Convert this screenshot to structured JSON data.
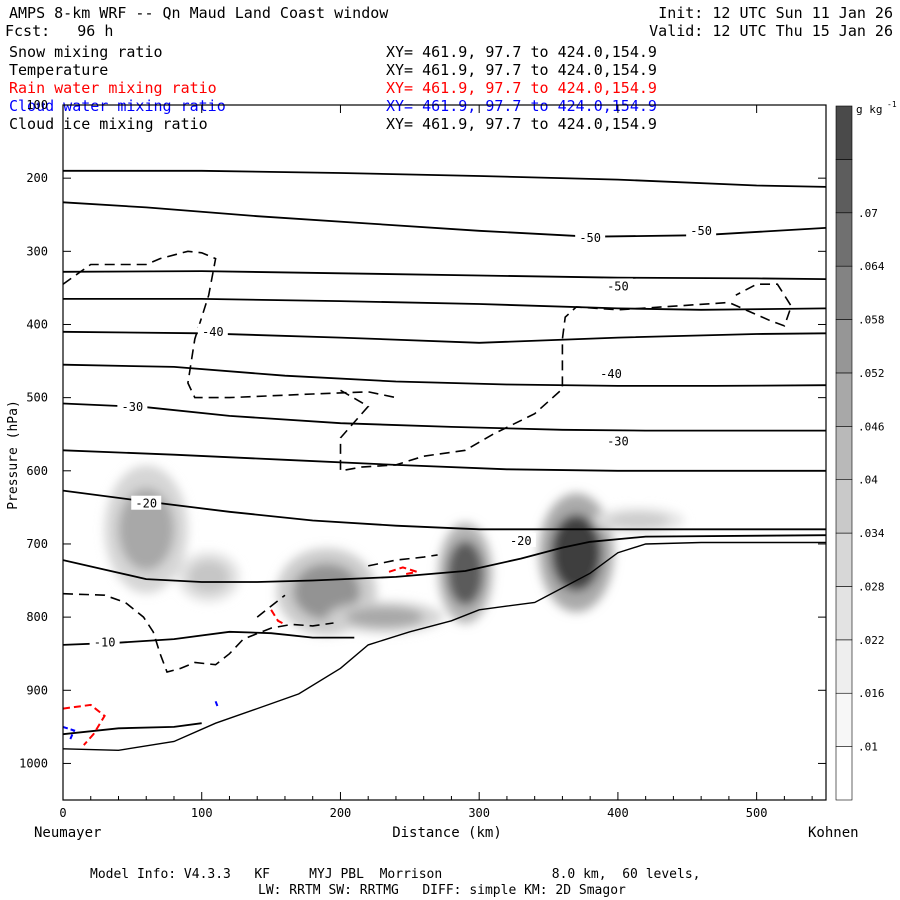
{
  "header": {
    "title": "AMPS 8-km WRF -- Qn Maud Land Coast window",
    "init": "Init: 12 UTC Sun 11 Jan 26",
    "fcst": "Fcst:   96 h",
    "valid": "Valid: 12 UTC Thu 15 Jan 26"
  },
  "legend": [
    {
      "label": "Snow mixing ratio",
      "xy": "XY= 461.9, 97.7 to 424.0,154.9",
      "color": "#000000"
    },
    {
      "label": "Temperature",
      "xy": "XY= 461.9, 97.7 to 424.0,154.9",
      "color": "#000000"
    },
    {
      "label": "Rain water mixing ratio",
      "xy": "XY= 461.9, 97.7 to 424.0,154.9",
      "color": "#ff0000"
    },
    {
      "label": "Cloud water mixing ratio",
      "xy": "XY= 461.9, 97.7 to 424.0,154.9",
      "color": "#0000ff"
    },
    {
      "label": "Cloud ice mixing ratio",
      "xy": "XY= 461.9, 97.7 to 424.0,154.9",
      "color": "#000000"
    }
  ],
  "footer": {
    "line1": "Model Info: V4.3.3   KF     MYJ PBL  Morrison              8.0 km,  60 levels,",
    "line2": "LW: RRTM SW: RRTMG   DIFF: simple KM: 2D Smagor"
  },
  "chart_data": {
    "type": "cross-section",
    "xlabel": "Distance (km)",
    "ylabel": "Pressure (hPa)",
    "x_ticks": [
      0,
      100,
      200,
      300,
      400,
      500
    ],
    "xlim": [
      0,
      550
    ],
    "y_ticks": [
      100,
      200,
      300,
      400,
      500,
      600,
      700,
      800,
      900,
      1000
    ],
    "ylim": [
      1050,
      100
    ],
    "left_endpoint": "Neumayer",
    "right_endpoint": "Kohnen",
    "colorbar": {
      "unit": "g kg",
      "unit_superscript": "-1",
      "ticks": [
        ".01",
        ".016",
        ".022",
        ".028",
        ".034",
        ".04",
        ".046",
        ".052",
        ".058",
        ".064",
        ".07"
      ],
      "shades": [
        "#ffffff",
        "#f7f7f7",
        "#eeeeee",
        "#e3e3e3",
        "#d7d7d7",
        "#c9c9c9",
        "#b9b9b9",
        "#a8a8a8",
        "#969696",
        "#838383",
        "#707070",
        "#5d5d5d",
        "#4a4a4a"
      ]
    },
    "temperature_contours": [
      {
        "level": -50,
        "points": [
          [
            0,
            190
          ],
          [
            100,
            190
          ],
          [
            200,
            193
          ],
          [
            300,
            197
          ],
          [
            400,
            202
          ],
          [
            500,
            210
          ],
          [
            550,
            212
          ]
        ]
      },
      {
        "level": -50,
        "points": [
          [
            0,
            233
          ],
          [
            60,
            240
          ],
          [
            140,
            252
          ],
          [
            220,
            262
          ],
          [
            300,
            272
          ],
          [
            380,
            280
          ],
          [
            460,
            278
          ],
          [
            550,
            268
          ]
        ]
      },
      {
        "level": -50,
        "points": [
          [
            0,
            328
          ],
          [
            100,
            327
          ],
          [
            200,
            330
          ],
          [
            300,
            333
          ],
          [
            400,
            336
          ],
          [
            500,
            337
          ],
          [
            550,
            338
          ]
        ]
      },
      {
        "level": -50,
        "points": [
          [
            0,
            365
          ],
          [
            100,
            365
          ],
          [
            200,
            368
          ],
          [
            300,
            372
          ],
          [
            400,
            378
          ],
          [
            460,
            380
          ],
          [
            550,
            378
          ]
        ]
      },
      {
        "level": -40,
        "points": [
          [
            0,
            410
          ],
          [
            100,
            412
          ],
          [
            200,
            418
          ],
          [
            300,
            425
          ],
          [
            400,
            418
          ],
          [
            500,
            413
          ],
          [
            550,
            412
          ]
        ]
      },
      {
        "level": -40,
        "points": [
          [
            0,
            455
          ],
          [
            80,
            458
          ],
          [
            160,
            470
          ],
          [
            240,
            478
          ],
          [
            320,
            482
          ],
          [
            400,
            484
          ],
          [
            470,
            484
          ],
          [
            550,
            483
          ]
        ]
      },
      {
        "level": -30,
        "points": [
          [
            0,
            508
          ],
          [
            60,
            513
          ],
          [
            120,
            525
          ],
          [
            200,
            535
          ],
          [
            280,
            540
          ],
          [
            360,
            544
          ],
          [
            420,
            545
          ],
          [
            550,
            545
          ]
        ]
      },
      {
        "level": -30,
        "points": [
          [
            0,
            572
          ],
          [
            80,
            578
          ],
          [
            160,
            585
          ],
          [
            240,
            592
          ],
          [
            320,
            598
          ],
          [
            400,
            600
          ],
          [
            470,
            600
          ],
          [
            550,
            600
          ]
        ]
      },
      {
        "level": -20,
        "points": [
          [
            0,
            627
          ],
          [
            60,
            642
          ],
          [
            120,
            656
          ],
          [
            180,
            668
          ],
          [
            240,
            675
          ],
          [
            300,
            680
          ],
          [
            360,
            680
          ],
          [
            420,
            680
          ],
          [
            550,
            680
          ]
        ]
      },
      {
        "level": -20,
        "points": [
          [
            0,
            722
          ],
          [
            30,
            735
          ],
          [
            60,
            748
          ],
          [
            100,
            752
          ],
          [
            140,
            752
          ],
          [
            180,
            750
          ],
          [
            240,
            745
          ],
          [
            290,
            737
          ],
          [
            330,
            720
          ],
          [
            360,
            705
          ],
          [
            380,
            697
          ],
          [
            420,
            690
          ],
          [
            550,
            688
          ]
        ]
      },
      {
        "level": -10,
        "points": [
          [
            0,
            838
          ],
          [
            40,
            835
          ],
          [
            80,
            830
          ],
          [
            120,
            820
          ],
          [
            150,
            822
          ],
          [
            180,
            828
          ],
          [
            210,
            828
          ]
        ]
      },
      {
        "level": -10,
        "points": [
          [
            0,
            960
          ],
          [
            40,
            952
          ],
          [
            80,
            950
          ],
          [
            100,
            945
          ]
        ]
      }
    ],
    "terrain": [
      [
        0,
        980
      ],
      [
        40,
        982
      ],
      [
        80,
        970
      ],
      [
        110,
        945
      ],
      [
        140,
        925
      ],
      [
        170,
        905
      ],
      [
        200,
        870
      ],
      [
        220,
        838
      ],
      [
        250,
        820
      ],
      [
        280,
        805
      ],
      [
        300,
        790
      ],
      [
        320,
        785
      ],
      [
        340,
        780
      ],
      [
        360,
        760
      ],
      [
        380,
        740
      ],
      [
        400,
        712
      ],
      [
        420,
        700
      ],
      [
        460,
        698
      ],
      [
        550,
        698
      ]
    ],
    "cloud_ice_blobs": [
      {
        "x": 60,
        "p": 680,
        "rx": 20,
        "ry": 140,
        "q": 0.03
      },
      {
        "x": 105,
        "p": 745,
        "rx": 15,
        "ry": 55,
        "q": 0.018
      },
      {
        "x": 190,
        "p": 765,
        "rx": 24,
        "ry": 95,
        "q": 0.038
      },
      {
        "x": 232,
        "p": 800,
        "rx": 28,
        "ry": 35,
        "q": 0.03
      },
      {
        "x": 290,
        "p": 740,
        "rx": 13,
        "ry": 110,
        "q": 0.06
      },
      {
        "x": 370,
        "p": 712,
        "rx": 18,
        "ry": 130,
        "q": 0.07
      },
      {
        "x": 415,
        "p": 668,
        "rx": 22,
        "ry": 28,
        "q": 0.016
      }
    ],
    "snow_contours": [
      {
        "points": [
          [
            0,
            345
          ],
          [
            20,
            318
          ],
          [
            60,
            318
          ],
          [
            70,
            310
          ],
          [
            90,
            300
          ],
          [
            100,
            302
          ],
          [
            110,
            310
          ],
          [
            105,
            360
          ],
          [
            95,
            420
          ],
          [
            90,
            480
          ],
          [
            95,
            500
          ],
          [
            120,
            500
          ],
          [
            180,
            495
          ],
          [
            220,
            492
          ],
          [
            240,
            500
          ]
        ]
      },
      {
        "points": [
          [
            200,
            490
          ],
          [
            220,
            512
          ],
          [
            200,
            555
          ],
          [
            200,
            600
          ],
          [
            215,
            595
          ],
          [
            240,
            592
          ],
          [
            260,
            580
          ],
          [
            290,
            572
          ],
          [
            310,
            550
          ],
          [
            340,
            522
          ],
          [
            360,
            488
          ],
          [
            360,
            420
          ],
          [
            362,
            390
          ],
          [
            370,
            376
          ],
          [
            400,
            380
          ],
          [
            440,
            375
          ],
          [
            480,
            370
          ],
          [
            510,
            395
          ],
          [
            520,
            402
          ],
          [
            525,
            375
          ],
          [
            515,
            345
          ],
          [
            500,
            345
          ],
          [
            485,
            360
          ]
        ]
      },
      {
        "points": [
          [
            0,
            768
          ],
          [
            30,
            770
          ],
          [
            45,
            780
          ],
          [
            58,
            800
          ],
          [
            65,
            820
          ],
          [
            70,
            850
          ],
          [
            75,
            875
          ],
          [
            85,
            870
          ],
          [
            95,
            862
          ],
          [
            110,
            865
          ],
          [
            120,
            850
          ],
          [
            130,
            830
          ],
          [
            150,
            815
          ],
          [
            165,
            810
          ],
          [
            180,
            812
          ],
          [
            195,
            808
          ]
        ]
      },
      {
        "points": [
          [
            140,
            800
          ],
          [
            150,
            785
          ],
          [
            160,
            770
          ]
        ]
      },
      {
        "points": [
          [
            220,
            730
          ],
          [
            240,
            722
          ],
          [
            260,
            718
          ],
          [
            270,
            715
          ]
        ]
      }
    ],
    "rain_contours": [
      {
        "points": [
          [
            0,
            925
          ],
          [
            20,
            920
          ],
          [
            30,
            935
          ],
          [
            22,
            960
          ],
          [
            15,
            975
          ]
        ]
      },
      {
        "points": [
          [
            150,
            790
          ],
          [
            155,
            805
          ],
          [
            160,
            810
          ]
        ]
      },
      {
        "points": [
          [
            235,
            738
          ],
          [
            245,
            732
          ],
          [
            255,
            738
          ],
          [
            245,
            742
          ]
        ]
      }
    ],
    "cloud_water_contours": [
      {
        "points": [
          [
            0,
            950
          ],
          [
            8,
            955
          ],
          [
            5,
            968
          ]
        ]
      },
      {
        "points": [
          [
            110,
            915
          ],
          [
            112,
            925
          ]
        ]
      }
    ],
    "contour_labels": [
      {
        "text": "-50",
        "x": 380,
        "p": 282
      },
      {
        "text": "-50",
        "x": 460,
        "p": 272
      },
      {
        "text": "-50",
        "x": 400,
        "p": 348
      },
      {
        "text": "-40",
        "x": 108,
        "p": 410
      },
      {
        "text": "-40",
        "x": 395,
        "p": 468
      },
      {
        "text": "-30",
        "x": 50,
        "p": 513
      },
      {
        "text": "-30",
        "x": 400,
        "p": 560
      },
      {
        "text": "-20",
        "x": 60,
        "p": 645
      },
      {
        "text": "-20",
        "x": 330,
        "p": 696
      },
      {
        "text": "-10",
        "x": 30,
        "p": 835
      }
    ]
  }
}
